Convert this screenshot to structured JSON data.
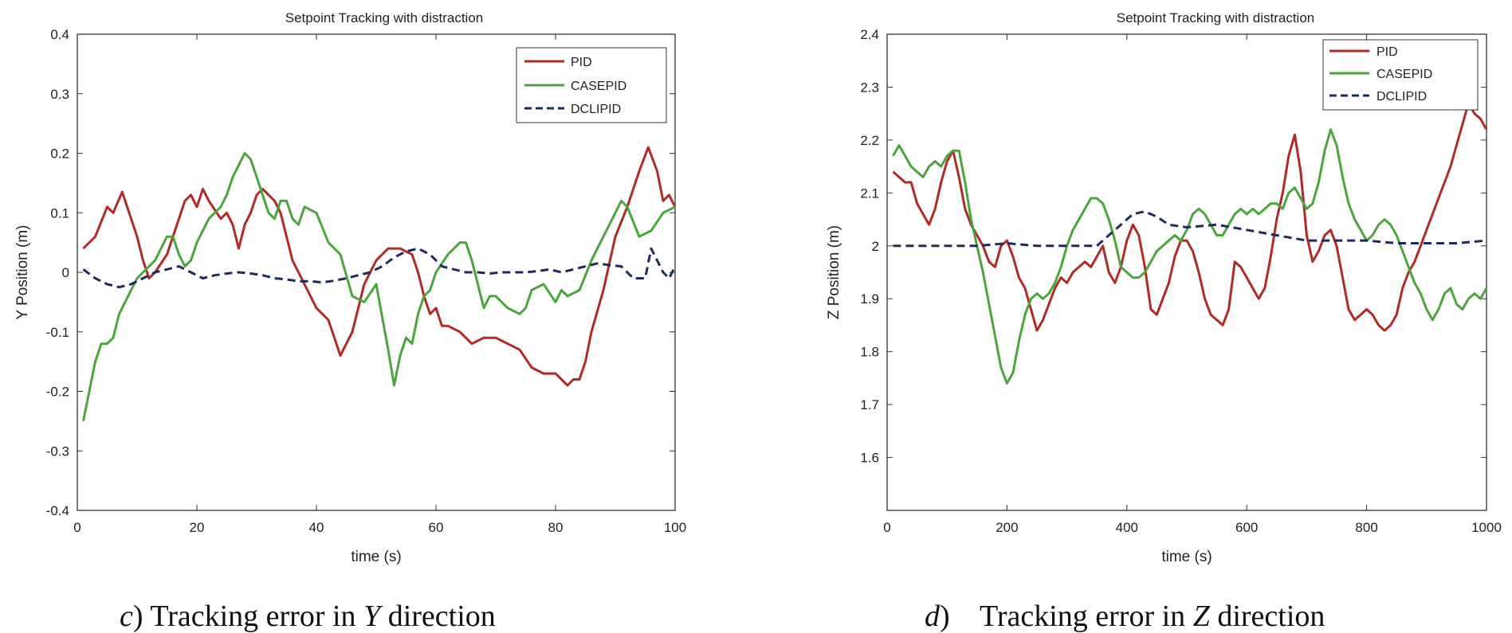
{
  "colors": {
    "PID": "#b22a25",
    "CASEPID": "#4aa63c",
    "DCLIPID": "#1f2a5c"
  },
  "captions": [
    {
      "prefix": "c",
      "paren": ")",
      "pre": " Tracking error in ",
      "axis": "Y",
      "post": " direction"
    },
    {
      "prefix": "d",
      "paren": ")",
      "pre": "    Tracking error in ",
      "axis": "Z",
      "post": " direction"
    }
  ],
  "chart_data": [
    {
      "type": "line",
      "title": "Setpoint Tracking with distraction",
      "xlabel": "time (s)",
      "ylabel": "Y Position (m)",
      "xlim": [
        0,
        100
      ],
      "ylim": [
        -0.4,
        0.4
      ],
      "xticks": [
        0,
        20,
        40,
        60,
        80,
        100
      ],
      "yticks": [
        -0.4,
        -0.3,
        -0.2,
        -0.1,
        0,
        0.1,
        0.2,
        0.3,
        0.4
      ],
      "xtick_labels": [
        "0",
        "20",
        "40",
        "60",
        "80",
        "100"
      ],
      "ytick_labels": [
        "-0.4",
        "-0.3",
        "-0.2",
        "-0.1",
        "0",
        "0.1",
        "0.2",
        "0.3",
        "0.4"
      ],
      "legend_location": "top-right",
      "series": [
        {
          "name": "PID",
          "style": "solid",
          "x": [
            1,
            3,
            5,
            6,
            7.5,
            9,
            10,
            11,
            12,
            13,
            15,
            17,
            18,
            19,
            20,
            21,
            22,
            24,
            25,
            26,
            27,
            28,
            29,
            30,
            31,
            32,
            33,
            34,
            36,
            38,
            40,
            42,
            44,
            46,
            48,
            50,
            52,
            54,
            56,
            57,
            58,
            59,
            60,
            61,
            62,
            64,
            66,
            68,
            70,
            72,
            74,
            76,
            78,
            80,
            82,
            83,
            84,
            85,
            86,
            88,
            90,
            92,
            94,
            95.5,
            97,
            98,
            99,
            100
          ],
          "y": [
            0.04,
            0.06,
            0.11,
            0.1,
            0.135,
            0.09,
            0.06,
            0.02,
            -0.01,
            0.0,
            0.03,
            0.09,
            0.12,
            0.13,
            0.11,
            0.14,
            0.12,
            0.09,
            0.1,
            0.08,
            0.04,
            0.08,
            0.1,
            0.13,
            0.14,
            0.13,
            0.12,
            0.1,
            0.02,
            -0.02,
            -0.06,
            -0.08,
            -0.14,
            -0.1,
            -0.02,
            0.02,
            0.04,
            0.04,
            0.03,
            0.0,
            -0.04,
            -0.07,
            -0.06,
            -0.09,
            -0.09,
            -0.1,
            -0.12,
            -0.11,
            -0.11,
            -0.12,
            -0.13,
            -0.16,
            -0.17,
            -0.17,
            -0.19,
            -0.18,
            -0.18,
            -0.15,
            -0.1,
            -0.03,
            0.06,
            0.11,
            0.17,
            0.21,
            0.17,
            0.12,
            0.13,
            0.11
          ]
        },
        {
          "name": "CASEPID",
          "style": "solid",
          "x": [
            1,
            2,
            3,
            4,
            5,
            6,
            7,
            8,
            9,
            10,
            11,
            12,
            13,
            14,
            15,
            16,
            17,
            18,
            19,
            20,
            22,
            24,
            25,
            26,
            27,
            28,
            29,
            30,
            31,
            32,
            33,
            34,
            35,
            36,
            37,
            38,
            40,
            42,
            44,
            46,
            48,
            50,
            52,
            53,
            54,
            55,
            56,
            57,
            58,
            59,
            60,
            62,
            64,
            65,
            66,
            67,
            68,
            69,
            70,
            72,
            74,
            75,
            76,
            78,
            80,
            81,
            82,
            84,
            86,
            88,
            90,
            91,
            92,
            94,
            96,
            98,
            100
          ],
          "y": [
            -0.25,
            -0.2,
            -0.15,
            -0.12,
            -0.12,
            -0.11,
            -0.07,
            -0.05,
            -0.03,
            -0.01,
            0.0,
            0.01,
            0.02,
            0.04,
            0.06,
            0.06,
            0.03,
            0.01,
            0.02,
            0.05,
            0.09,
            0.11,
            0.13,
            0.16,
            0.18,
            0.2,
            0.19,
            0.16,
            0.13,
            0.1,
            0.09,
            0.12,
            0.12,
            0.09,
            0.08,
            0.11,
            0.1,
            0.05,
            0.03,
            -0.04,
            -0.05,
            -0.02,
            -0.13,
            -0.19,
            -0.14,
            -0.11,
            -0.12,
            -0.07,
            -0.04,
            -0.03,
            0.0,
            0.03,
            0.05,
            0.05,
            0.02,
            -0.02,
            -0.06,
            -0.04,
            -0.04,
            -0.06,
            -0.07,
            -0.06,
            -0.03,
            -0.02,
            -0.05,
            -0.03,
            -0.04,
            -0.03,
            0.02,
            0.06,
            0.1,
            0.12,
            0.11,
            0.06,
            0.07,
            0.1,
            0.11
          ]
        },
        {
          "name": "DCLIPID",
          "style": "dashed",
          "x": [
            1,
            3,
            5,
            7,
            9,
            11,
            13,
            15,
            17,
            19,
            21,
            23,
            25,
            27,
            29,
            31,
            33,
            35,
            37,
            39,
            41,
            43,
            45,
            47,
            49,
            51,
            53,
            55,
            57,
            59,
            61,
            63,
            65,
            67,
            69,
            71,
            73,
            75,
            77,
            79,
            81,
            83,
            85,
            87,
            89,
            91,
            93,
            95,
            96,
            97,
            98,
            99,
            100
          ],
          "y": [
            0.005,
            -0.01,
            -0.02,
            -0.025,
            -0.02,
            -0.01,
            0.0,
            0.005,
            0.01,
            0.0,
            -0.01,
            -0.005,
            -0.002,
            0.0,
            -0.002,
            -0.005,
            -0.01,
            -0.012,
            -0.015,
            -0.015,
            -0.017,
            -0.014,
            -0.01,
            -0.005,
            0.0,
            0.01,
            0.025,
            0.035,
            0.04,
            0.03,
            0.01,
            0.005,
            0.0,
            0.0,
            -0.002,
            0.0,
            0.0,
            0.0,
            0.002,
            0.005,
            0.0,
            0.005,
            0.01,
            0.015,
            0.012,
            0.01,
            -0.01,
            -0.01,
            0.04,
            0.02,
            0.0,
            -0.01,
            0.01
          ]
        }
      ]
    },
    {
      "type": "line",
      "title": "Setpoint Tracking with distraction",
      "xlabel": "time (s)",
      "ylabel": "Z Position (m)",
      "xlim": [
        0,
        1000
      ],
      "ylim": [
        1.5,
        2.4
      ],
      "xticks": [
        0,
        200,
        400,
        600,
        800,
        1000
      ],
      "yticks": [
        1.6,
        1.7,
        1.8,
        1.9,
        2.0,
        2.1,
        2.2,
        2.3,
        2.4
      ],
      "xtick_labels": [
        "0",
        "200",
        "400",
        "600",
        "800",
        "1000"
      ],
      "ytick_labels": [
        "1.6",
        "1.7",
        "1.8",
        "1.9",
        "2",
        "2.1",
        "2.2",
        "2.3",
        "2.4"
      ],
      "legend_location": "top-right",
      "series": [
        {
          "name": "PID",
          "style": "solid",
          "x": [
            10,
            20,
            30,
            40,
            50,
            60,
            70,
            80,
            90,
            100,
            110,
            120,
            130,
            140,
            150,
            160,
            170,
            180,
            190,
            200,
            210,
            220,
            230,
            240,
            250,
            260,
            270,
            280,
            290,
            300,
            310,
            320,
            330,
            340,
            350,
            360,
            370,
            380,
            390,
            400,
            410,
            420,
            430,
            440,
            450,
            460,
            470,
            480,
            490,
            500,
            510,
            520,
            530,
            540,
            550,
            560,
            570,
            580,
            590,
            600,
            610,
            620,
            630,
            640,
            650,
            660,
            670,
            680,
            690,
            700,
            710,
            720,
            730,
            740,
            750,
            760,
            770,
            780,
            790,
            800,
            810,
            820,
            830,
            840,
            850,
            860,
            870,
            880,
            890,
            900,
            910,
            920,
            930,
            940,
            950,
            960,
            970,
            980,
            990,
            1000
          ],
          "y": [
            2.14,
            2.13,
            2.12,
            2.12,
            2.08,
            2.06,
            2.04,
            2.07,
            2.12,
            2.16,
            2.18,
            2.13,
            2.07,
            2.04,
            2.02,
            2.0,
            1.97,
            1.96,
            2.0,
            2.01,
            1.98,
            1.94,
            1.92,
            1.88,
            1.84,
            1.86,
            1.89,
            1.92,
            1.94,
            1.93,
            1.95,
            1.96,
            1.97,
            1.96,
            1.98,
            2.0,
            1.95,
            1.93,
            1.96,
            2.01,
            2.04,
            2.02,
            1.96,
            1.88,
            1.87,
            1.9,
            1.93,
            1.98,
            2.01,
            2.01,
            1.99,
            1.95,
            1.9,
            1.87,
            1.86,
            1.85,
            1.88,
            1.97,
            1.96,
            1.94,
            1.92,
            1.9,
            1.92,
            1.98,
            2.05,
            2.1,
            2.17,
            2.21,
            2.14,
            2.02,
            1.97,
            1.99,
            2.02,
            2.03,
            2.0,
            1.94,
            1.88,
            1.86,
            1.87,
            1.88,
            1.87,
            1.85,
            1.84,
            1.85,
            1.87,
            1.92,
            1.95,
            1.97,
            2.0,
            2.03,
            2.06,
            2.09,
            2.12,
            2.15,
            2.19,
            2.23,
            2.27,
            2.25,
            2.24,
            2.22
          ]
        },
        {
          "name": "CASEPID",
          "style": "solid",
          "x": [
            10,
            20,
            30,
            40,
            50,
            60,
            70,
            80,
            90,
            100,
            110,
            120,
            130,
            140,
            150,
            160,
            170,
            180,
            190,
            200,
            210,
            220,
            230,
            240,
            250,
            260,
            270,
            280,
            290,
            300,
            310,
            320,
            330,
            340,
            350,
            360,
            370,
            380,
            390,
            400,
            410,
            420,
            430,
            440,
            450,
            460,
            470,
            480,
            490,
            500,
            510,
            520,
            530,
            540,
            550,
            560,
            570,
            580,
            590,
            600,
            610,
            620,
            630,
            640,
            650,
            660,
            670,
            680,
            690,
            700,
            710,
            720,
            730,
            740,
            750,
            760,
            770,
            780,
            790,
            800,
            810,
            820,
            830,
            840,
            850,
            860,
            870,
            880,
            890,
            900,
            910,
            920,
            930,
            940,
            950,
            960,
            970,
            980,
            990,
            1000
          ],
          "y": [
            2.17,
            2.19,
            2.17,
            2.15,
            2.14,
            2.13,
            2.15,
            2.16,
            2.15,
            2.17,
            2.18,
            2.18,
            2.12,
            2.05,
            2.0,
            1.95,
            1.89,
            1.83,
            1.77,
            1.74,
            1.76,
            1.82,
            1.87,
            1.9,
            1.91,
            1.9,
            1.91,
            1.93,
            1.96,
            2.0,
            2.03,
            2.05,
            2.07,
            2.09,
            2.09,
            2.08,
            2.05,
            2.01,
            1.96,
            1.95,
            1.94,
            1.94,
            1.95,
            1.97,
            1.99,
            2.0,
            2.01,
            2.02,
            2.01,
            2.03,
            2.06,
            2.07,
            2.06,
            2.04,
            2.02,
            2.02,
            2.04,
            2.06,
            2.07,
            2.06,
            2.07,
            2.06,
            2.07,
            2.08,
            2.08,
            2.07,
            2.1,
            2.11,
            2.09,
            2.07,
            2.08,
            2.12,
            2.18,
            2.22,
            2.19,
            2.13,
            2.08,
            2.05,
            2.03,
            2.01,
            2.02,
            2.04,
            2.05,
            2.04,
            2.02,
            1.99,
            1.96,
            1.93,
            1.91,
            1.88,
            1.86,
            1.88,
            1.91,
            1.92,
            1.89,
            1.88,
            1.9,
            1.91,
            1.9,
            1.92
          ]
        },
        {
          "name": "DCLIPID",
          "style": "dashed",
          "x": [
            10,
            50,
            100,
            150,
            200,
            250,
            300,
            350,
            370,
            390,
            410,
            430,
            450,
            470,
            500,
            550,
            600,
            650,
            700,
            750,
            800,
            850,
            900,
            950,
            1000
          ],
          "y": [
            2.0,
            2.0,
            2.0,
            2.0,
            2.005,
            2.0,
            2.0,
            2.0,
            2.02,
            2.04,
            2.06,
            2.065,
            2.055,
            2.04,
            2.035,
            2.04,
            2.03,
            2.02,
            2.01,
            2.01,
            2.01,
            2.005,
            2.005,
            2.005,
            2.01
          ]
        }
      ]
    }
  ]
}
